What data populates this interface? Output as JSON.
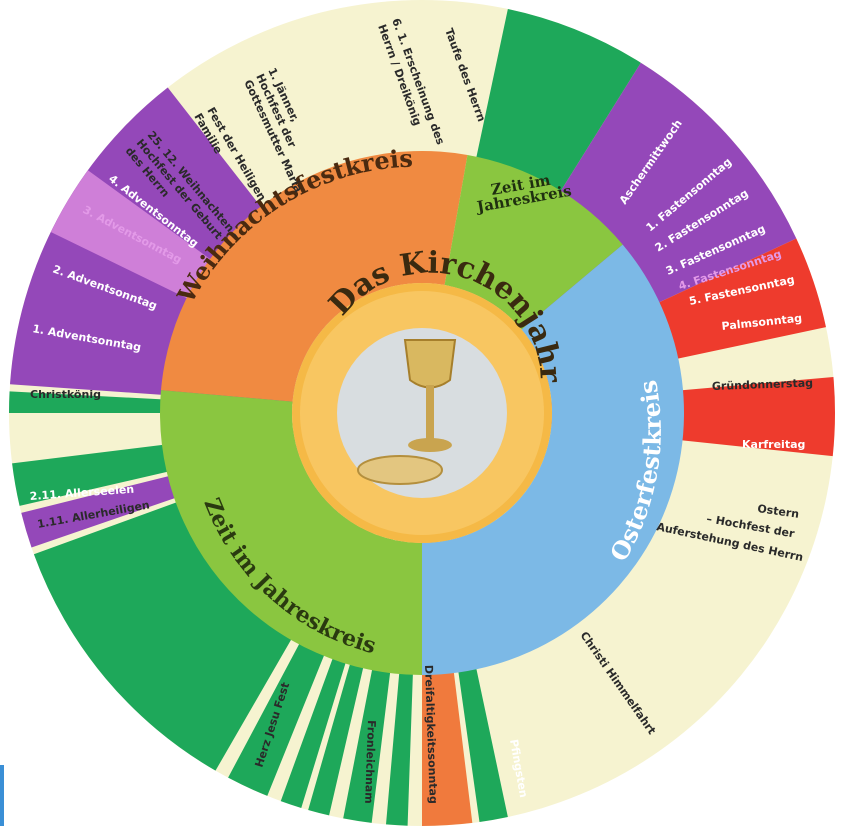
{
  "title": "Das Kirchenjahr",
  "colors": {
    "background_cream": "#f6f3d0",
    "green": "#1ea85a",
    "purple": "#9448b9",
    "pink_purple": "#cf7fd8",
    "red": "#ee3b2d",
    "orange": "#f07a3d",
    "ring_orange": "#f08a41",
    "ring_green": "#8ac640",
    "ring_blue": "#7cb9e6",
    "center_gold": "#f5b946"
  },
  "rings": [
    {
      "id": "weihnachtsfestkreis",
      "label": "Weihnachtsfestkreis",
      "color": "#f08a41"
    },
    {
      "id": "zeit-im-jahreskreis-top",
      "label": "Zeit im Jahreskreis",
      "color": "#8ac640"
    },
    {
      "id": "osterfestkreis",
      "label": "Osterfestkreis",
      "color": "#7cb9e6"
    },
    {
      "id": "zeit-im-jahreskreis-bottom",
      "label": "Zeit im Jahreskreis",
      "color": "#8ac640"
    }
  ],
  "ring_small_label": {
    "line1": "Zeit im",
    "line2": "Jahreskreis"
  },
  "labels": {
    "taufe": "Taufe des Herrn",
    "erscheinung_1": "6. 1. Erscheinung des",
    "erscheinung_2": "Herrn / Dreikönig",
    "jaenner_1": "1. Jänner,",
    "jaenner_2": "Hochfest der",
    "jaenner_3": "Gottesmutter Maria",
    "familie_1": "Fest der Heiligen",
    "familie_2": "Familie",
    "weihnachten_1": "25. 12. Weihnachten -",
    "weihnachten_2": "Hochfest der Geburt",
    "weihnachten_3": "des Herrn",
    "advent4": "4. Adventsonntag",
    "advent3": "3. Adventsonntag",
    "advent2": "2. Adventsonntag",
    "advent1": "1. Adventsonntag",
    "christkoenig": "Christkönig",
    "allerseelen": "2.11. Allerseelen",
    "allerheiligen": "1.11. Allerheiligen",
    "aschermittwoch": "Aschermittwoch",
    "fasten1": "1. Fastensonntag",
    "fasten2": "2. Fastensonntag",
    "fasten3": "3. Fastensonntag",
    "fasten4": "4. Fastensonntag",
    "fasten5": "5. Fastensonntag",
    "palmsonntag": "Palmsonntag",
    "gruendonnerstag": "Gründonnerstag",
    "karfreitag": "Karfreitag",
    "ostern_1": "Ostern",
    "ostern_2": "– Hochfest der",
    "ostern_3": "Auferstehung des Herrn",
    "himmelfahrt": "Christi Himmelfahrt",
    "pfingsten": "Pfingsten",
    "dreifaltigkeit": "Dreifaltigkeitssonntag",
    "fronleichnam": "Fronleichnam",
    "herzjesu": "Herz Jesu Fest"
  }
}
